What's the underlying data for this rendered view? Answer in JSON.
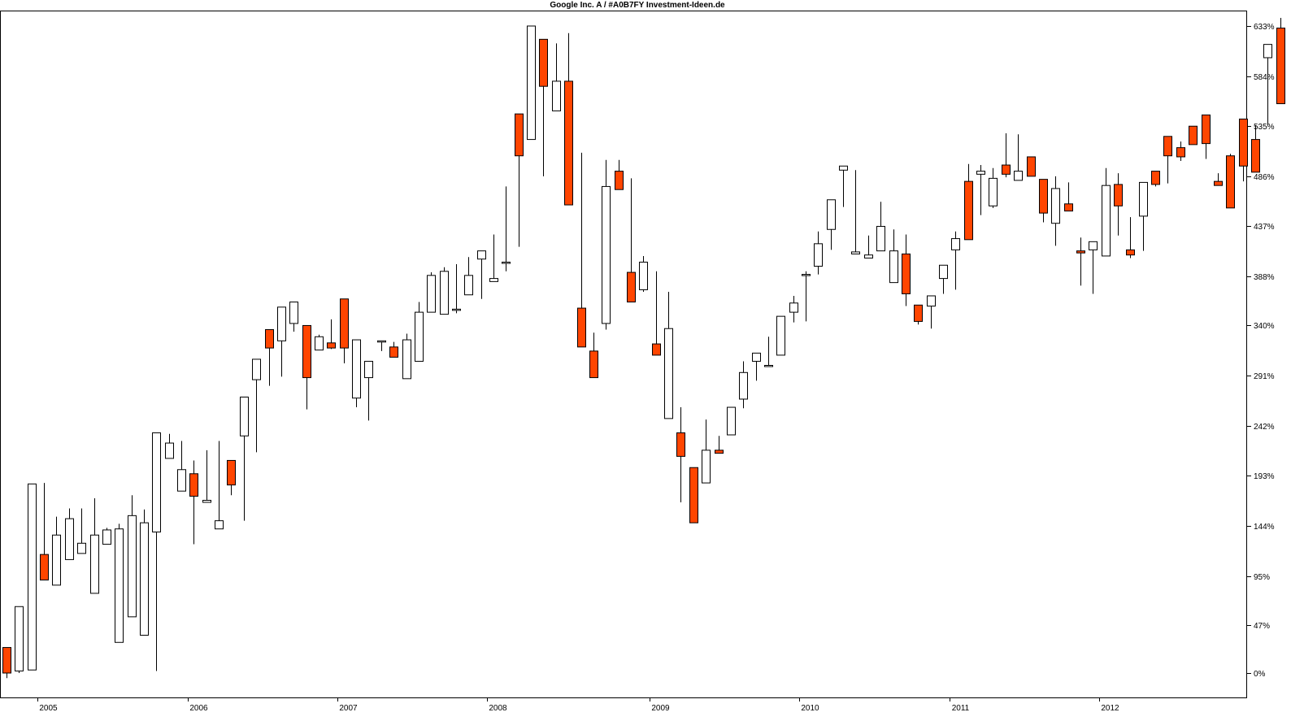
{
  "chart_data": {
    "type": "candlestick",
    "title": "Google Inc. A / #A0B7FY Investment-Ideen.de",
    "y_unit": "%",
    "ylim": [
      -5,
      650
    ],
    "y_ticks": [
      0,
      47,
      95,
      144,
      193,
      242,
      291,
      340,
      388,
      437,
      486,
      535,
      584,
      633
    ],
    "y_tick_labels": [
      "0%",
      "47%",
      "95%",
      "144%",
      "193%",
      "242%",
      "291%",
      "340%",
      "388%",
      "437%",
      "486%",
      "535%",
      "584%",
      "633%"
    ],
    "x_ticks": [
      "2005",
      "2006",
      "2007",
      "2008",
      "2009",
      "2010",
      "2011",
      "2012"
    ],
    "x_tick_positions": [
      2.5,
      14.5,
      26.5,
      38.5,
      51.5,
      63.5,
      75.5,
      87.5
    ],
    "colors": {
      "up_fill": "#ffffff",
      "down_fill": "#ff4500",
      "outline": "#000000",
      "grid": "#000000"
    },
    "candles": [
      [
        0,
        -5,
        25,
        0,
        5
      ],
      [
        1,
        0,
        2,
        65,
        60
      ],
      [
        2,
        57,
        3,
        185,
        185
      ],
      [
        3,
        186,
        116,
        91,
        145
      ],
      [
        4,
        145,
        86,
        135,
        153
      ],
      [
        5,
        146,
        111,
        151,
        161
      ],
      [
        6,
        154,
        117,
        127,
        161
      ],
      [
        7,
        156,
        78,
        135,
        171
      ],
      [
        8,
        134,
        126,
        140,
        142
      ],
      [
        9,
        143,
        30,
        141,
        146
      ],
      [
        10,
        145,
        55,
        154,
        174
      ],
      [
        11,
        160,
        37,
        147,
        143
      ],
      [
        12,
        152,
        138,
        235,
        2
      ],
      [
        13,
        234,
        210,
        225,
        223
      ],
      [
        14,
        227,
        178,
        199,
        208
      ],
      [
        15,
        208,
        195,
        173,
        126
      ],
      [
        16,
        216,
        167,
        169,
        218
      ],
      [
        17,
        168,
        141,
        149,
        227
      ],
      [
        18,
        174,
        208,
        184,
        203
      ],
      [
        19,
        149,
        232,
        270,
        257
      ],
      [
        20,
        275,
        287,
        307,
        216
      ],
      [
        21,
        313,
        336,
        318,
        281
      ],
      [
        22,
        348,
        325,
        358,
        290
      ],
      [
        23,
        355,
        342,
        363,
        334
      ],
      [
        24,
        299,
        340,
        289,
        258
      ],
      [
        25,
        331,
        316,
        329,
        321
      ],
      [
        26,
        317,
        323,
        318,
        346
      ],
      [
        27,
        303,
        366,
        318,
        347
      ],
      [
        28,
        285,
        269,
        326,
        260
      ],
      [
        29,
        247,
        289,
        305,
        266
      ],
      [
        30,
        315,
        325,
        325,
        318
      ],
      [
        31,
        318,
        319,
        309,
        324
      ],
      [
        32,
        307,
        288,
        326,
        332
      ],
      [
        33,
        335,
        305,
        353,
        363
      ],
      [
        34,
        367,
        353,
        389,
        392
      ],
      [
        35,
        377,
        351,
        393,
        397
      ],
      [
        36,
        352,
        356,
        356,
        400
      ],
      [
        37,
        397,
        370,
        389,
        407
      ],
      [
        38,
        405,
        405,
        413,
        366
      ],
      [
        39,
        429,
        383,
        386,
        419
      ],
      [
        40,
        393,
        401,
        402,
        476
      ],
      [
        41,
        417,
        547,
        506,
        471
      ],
      [
        42,
        526,
        522,
        633,
        579
      ],
      [
        43,
        578,
        620,
        574,
        486
      ],
      [
        44,
        616,
        550,
        579,
        576
      ],
      [
        45,
        626,
        579,
        458,
        545
      ],
      [
        46,
        509,
        357,
        319,
        327
      ],
      [
        47,
        333,
        315,
        289,
        295
      ],
      [
        48,
        336,
        342,
        476,
        502
      ],
      [
        49,
        478,
        491,
        473,
        502
      ],
      [
        50,
        484,
        392,
        363,
        438
      ],
      [
        51,
        408,
        375,
        402,
        373
      ],
      [
        52,
        391,
        322,
        311,
        393
      ],
      [
        53,
        361,
        249,
        337,
        373
      ],
      [
        54,
        260,
        235,
        212,
        167
      ],
      [
        55,
        167,
        201,
        147,
        193
      ],
      [
        56,
        198,
        186,
        218,
        248
      ],
      [
        57,
        232,
        218,
        215,
        228
      ],
      [
        58,
        244,
        233,
        260,
        251
      ],
      [
        59,
        259,
        268,
        294,
        305
      ],
      [
        60,
        291,
        305,
        313,
        286
      ],
      [
        61,
        326,
        301,
        301,
        329
      ],
      [
        62,
        311,
        311,
        349,
        318
      ],
      [
        63,
        343,
        353,
        362,
        369
      ],
      [
        64,
        344,
        390,
        390,
        393
      ],
      [
        65,
        390,
        398,
        420,
        432
      ],
      [
        66,
        414,
        434,
        463,
        455
      ],
      [
        67,
        456,
        492,
        496,
        473
      ],
      [
        68,
        492,
        410,
        412,
        431
      ],
      [
        69,
        428,
        406,
        409,
        418
      ],
      [
        70,
        461,
        413,
        437,
        429
      ],
      [
        71,
        424,
        382,
        413,
        434
      ],
      [
        72,
        429,
        410,
        371,
        359
      ],
      [
        73,
        345,
        360,
        344,
        341
      ],
      [
        74,
        337,
        359,
        369,
        346
      ],
      [
        75,
        371,
        386,
        399,
        373
      ],
      [
        76,
        375,
        414,
        425,
        432
      ],
      [
        77,
        428,
        481,
        424,
        498
      ],
      [
        78,
        448,
        488,
        491,
        497
      ],
      [
        79,
        455,
        457,
        484,
        494
      ],
      [
        80,
        485,
        497,
        488,
        528
      ],
      [
        81,
        491,
        482,
        491,
        527
      ],
      [
        82,
        491,
        505,
        486,
        488
      ],
      [
        83,
        441,
        483,
        450,
        474
      ],
      [
        84,
        418,
        440,
        474,
        486
      ],
      [
        85,
        480,
        459,
        452,
        460
      ],
      [
        86,
        426,
        413,
        411,
        379
      ],
      [
        87,
        371,
        414,
        422,
        374
      ],
      [
        88,
        410,
        408,
        477,
        494
      ],
      [
        89,
        428,
        478,
        457,
        489
      ],
      [
        90,
        446,
        414,
        409,
        406
      ],
      [
        91,
        413,
        447,
        480,
        476
      ],
      [
        92,
        490,
        491,
        478,
        476
      ],
      [
        93,
        483,
        525,
        506,
        479
      ],
      [
        94,
        501,
        514,
        505,
        520
      ],
      [
        95,
        527,
        535,
        517,
        520
      ],
      [
        96,
        503,
        546,
        518,
        521
      ],
      [
        97,
        480,
        481,
        477,
        489
      ],
      [
        98,
        508,
        506,
        455,
        466
      ],
      [
        99,
        481,
        542,
        496,
        497
      ],
      [
        100,
        503,
        522,
        490,
        536
      ],
      [
        101,
        536,
        602,
        615,
        587
      ],
      [
        102,
        641,
        631,
        557,
        610
      ]
    ]
  }
}
